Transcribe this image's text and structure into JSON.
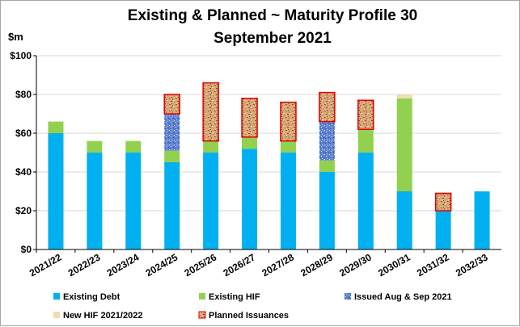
{
  "chart_data": {
    "type": "bar",
    "stacked": true,
    "title_lines": [
      "Existing & Planned ~  Maturity Profile 30",
      "September 2021"
    ],
    "ylabel": "$m",
    "xlabel": "",
    "ylim": [
      0,
      100
    ],
    "yticks": [
      0,
      20,
      40,
      60,
      80,
      100
    ],
    "ytick_labels": [
      "$0",
      "$20",
      "$40",
      "$60",
      "$80",
      "$100"
    ],
    "grid": true,
    "legend_position": "bottom",
    "categories": [
      "2021/22",
      "2022/23",
      "2023/24",
      "2024/25",
      "2025/26",
      "2026/27",
      "2027/28",
      "2028/29",
      "2029/30",
      "2030/31",
      "2031/32",
      "2032/33"
    ],
    "series": [
      {
        "name": "Existing Debt",
        "color": "#00b0f0",
        "pattern": "solid",
        "values": [
          60,
          50,
          50,
          45,
          50,
          52,
          50,
          40,
          50,
          30,
          20,
          30
        ]
      },
      {
        "name": "Existing HIF",
        "color": "#92d050",
        "pattern": "solid",
        "values": [
          6,
          6,
          6,
          6,
          6,
          6,
          6,
          6,
          12,
          48,
          0,
          0
        ]
      },
      {
        "name": "Issued Aug & Sep 2021",
        "color": "#4472c4",
        "pattern": "speckle-blue",
        "values": [
          0,
          0,
          0,
          19,
          0,
          0,
          0,
          20,
          0,
          0,
          0,
          0
        ]
      },
      {
        "name": "New HIF 2021/2022",
        "color": "#f2dcb0",
        "pattern": "solid",
        "values": [
          0,
          0,
          0,
          0,
          0,
          0,
          0,
          0,
          0,
          2,
          0,
          0
        ]
      },
      {
        "name": "Planned Issuances",
        "color": "#d4a373",
        "pattern": "cork",
        "border": "#e00000",
        "values": [
          0,
          0,
          0,
          10,
          30,
          20,
          20,
          15,
          15,
          0,
          9,
          0
        ]
      }
    ]
  }
}
